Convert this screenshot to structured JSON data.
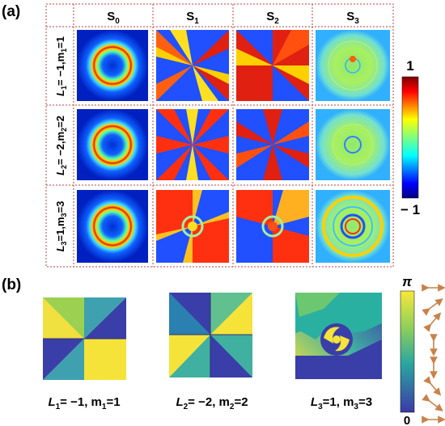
{
  "panel_a": {
    "label": "(a)",
    "columns": [
      {
        "sym": "S",
        "sub": "0"
      },
      {
        "sym": "S",
        "sub": "1"
      },
      {
        "sym": "S",
        "sub": "2"
      },
      {
        "sym": "S",
        "sub": "3"
      }
    ],
    "rows": [
      {
        "L": "L",
        "Lsub": "1",
        "Lval": "= −1,",
        "m": "m",
        "msub": "1",
        "mval": "=1"
      },
      {
        "L": "L",
        "Lsub": "2",
        "Lval": "= −2,",
        "m": "m",
        "msub": "2",
        "mval": "=2"
      },
      {
        "L": "L",
        "Lsub": "3",
        "Lval": "=1,",
        "m": "m",
        "msub": "3",
        "mval": "=3"
      }
    ],
    "colorbar": {
      "max": "1",
      "min": "− 1"
    }
  },
  "panel_b": {
    "label": "(b)",
    "captions": [
      {
        "L": "L",
        "Lsub": "1",
        "Lval": "= −1, ",
        "m": "m",
        "msub": "1",
        "mval": "=1"
      },
      {
        "L": "L",
        "Lsub": "2",
        "Lval": "= −2, ",
        "m": "m",
        "msub": "2",
        "mval": "=2"
      },
      {
        "L": "L",
        "Lsub": "3",
        "Lval": "=1, ",
        "m": "m",
        "msub": "3",
        "mval": "=3"
      }
    ],
    "colorbar": {
      "max": "π",
      "min": "0"
    }
  },
  "colors": {
    "grid_line": "#c04040",
    "jet_dark_blue": "#00008f",
    "jet_red": "#b00000",
    "phase_blue": "#3a3ea8",
    "phase_yellow": "#f5e33a",
    "arrow": "#c8824a"
  }
}
